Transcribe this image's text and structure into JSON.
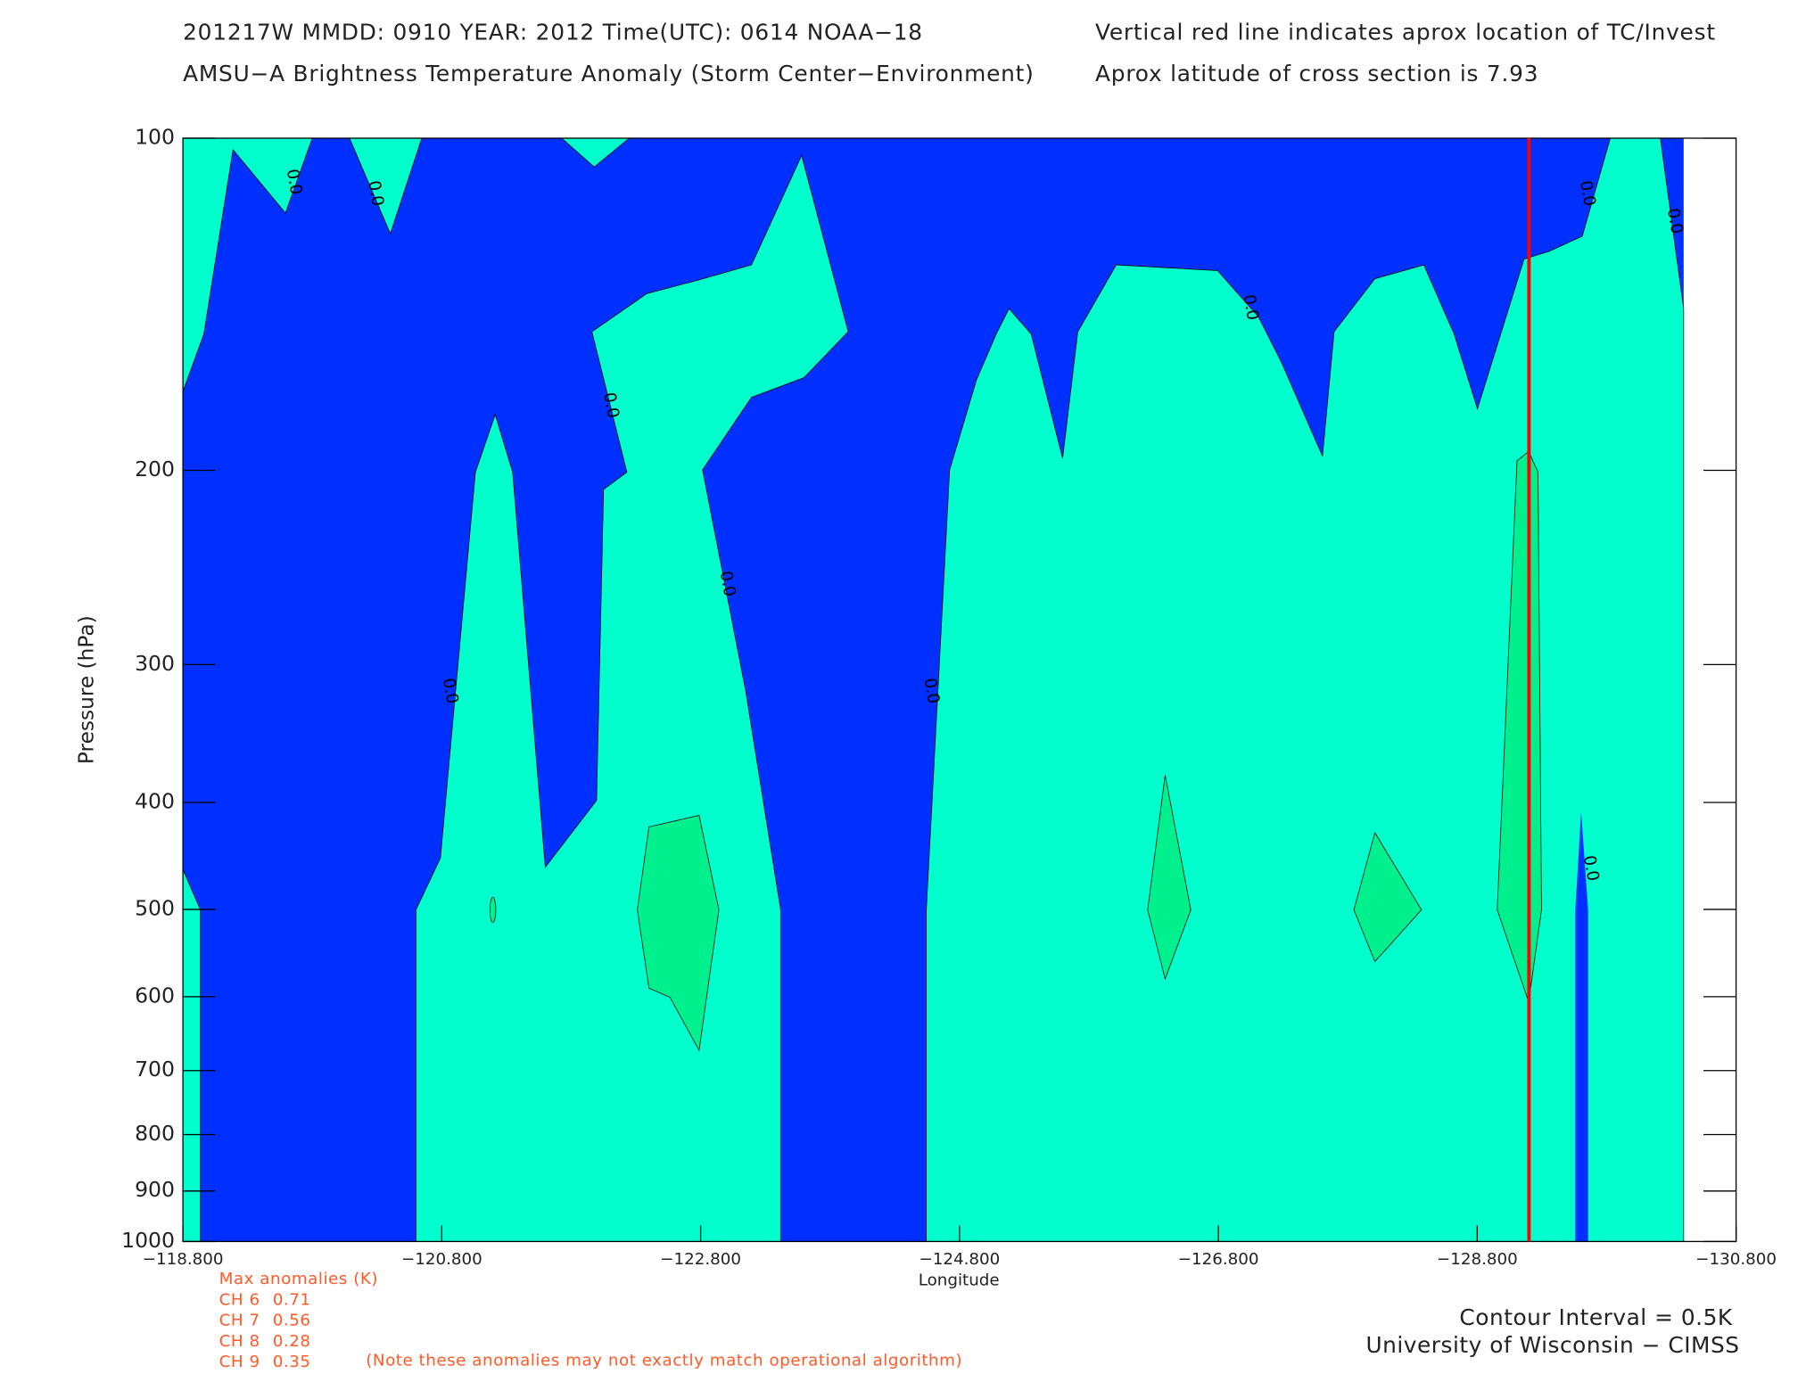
{
  "chart_data": {
    "type": "contour",
    "title": "201217W  MMDD: 0910 YEAR: 2012 Time(UTC): 0614 NOAA−18",
    "subtitle": "AMSU−A Brightness Temperature Anomaly (Storm Center−Environment)",
    "note": "Vertical red line indicates aprox location of TC/Invest",
    "latitude_note": "Aprox latitude of cross section is 7.93",
    "x_label": "Longitude",
    "y_label": "Pressure (hPa)",
    "xlim": [
      -118.8,
      -130.8
    ],
    "xticks": [
      {
        "value": -118.8,
        "label": "−118.800"
      },
      {
        "value": -120.8,
        "label": "−120.800"
      },
      {
        "value": -122.8,
        "label": "−122.800"
      },
      {
        "value": -124.8,
        "label": "−124.800"
      },
      {
        "value": -126.8,
        "label": "−126.800"
      },
      {
        "value": -128.8,
        "label": "−128.800"
      },
      {
        "value": -130.8,
        "label": "−130.800"
      }
    ],
    "ylim": [
      1000,
      100
    ],
    "ylog": true,
    "yticks": [
      100,
      200,
      300,
      400,
      500,
      600,
      700,
      800,
      900,
      1000
    ],
    "storm_longitude": -129.2,
    "storm_line_color": "#ff0000",
    "contour_labels": [
      "0.0",
      "0.0",
      "0.0",
      "0.0",
      "0.0",
      "0.0",
      "0.0",
      "0.0",
      "0.0",
      "0.0"
    ],
    "max_anomalies_title": "Max anomalies (K)",
    "max_anomalies": [
      {
        "channel": "CH 6",
        "value": 0.71
      },
      {
        "channel": "CH 7",
        "value": 0.56
      },
      {
        "channel": "CH 8",
        "value": 0.28
      },
      {
        "channel": "CH 9",
        "value": 0.35
      }
    ],
    "anomaly_note": "(Note these anomalies may not exactly match operational algorithm)",
    "contour_interval": "Contour Interval = 0.5K",
    "credit": "University of Wisconsin − CIMSS"
  }
}
